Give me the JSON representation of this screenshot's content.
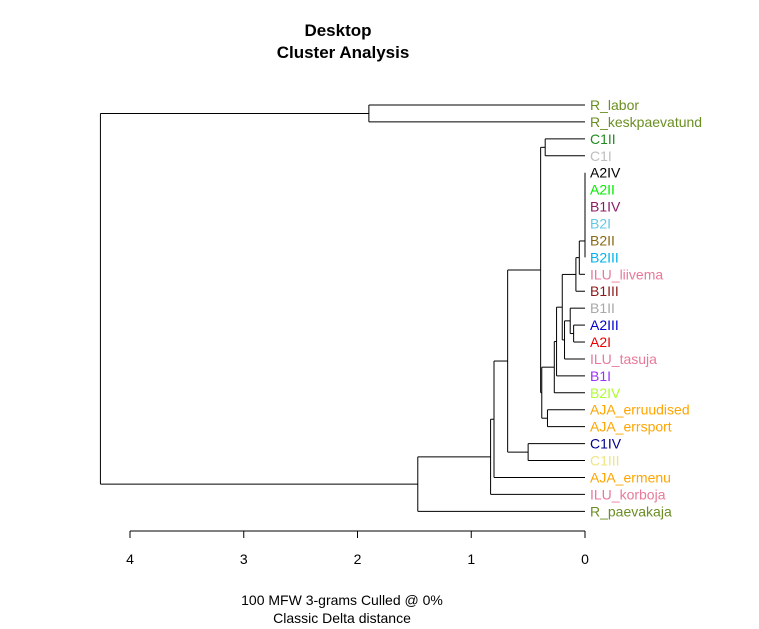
{
  "chart_data": {
    "type": "dendrogram",
    "title": [
      "Desktop",
      "Cluster Analysis"
    ],
    "xlabel": [
      "100 MFW 3-grams Culled @ 0%",
      "Classic Delta distance"
    ],
    "xticks": [
      4,
      3,
      2,
      1,
      0
    ],
    "xlim": [
      4.2,
      0
    ],
    "leaves": [
      {
        "label": "R_labor",
        "color": "#6B8E23"
      },
      {
        "label": "R_keskpaevatund",
        "color": "#6B8E23"
      },
      {
        "label": "C1II",
        "color": "#228B22"
      },
      {
        "label": "C1I",
        "color": "#BEBEBE"
      },
      {
        "label": "A2IV",
        "color": "#000000"
      },
      {
        "label": "A2II",
        "color": "#00EE00"
      },
      {
        "label": "B1IV",
        "color": "#8B1C62"
      },
      {
        "label": "B2I",
        "color": "#5FC8E8"
      },
      {
        "label": "B2II",
        "color": "#8B6914"
      },
      {
        "label": "B2III",
        "color": "#00B2EE"
      },
      {
        "label": "ILU_liivema",
        "color": "#E8799A"
      },
      {
        "label": "B1III",
        "color": "#8B1A1A"
      },
      {
        "label": "B1II",
        "color": "#A9A9A9"
      },
      {
        "label": "A2III",
        "color": "#0000CD"
      },
      {
        "label": "A2I",
        "color": "#EE0000"
      },
      {
        "label": "ILU_tasuja",
        "color": "#E8799A"
      },
      {
        "label": "B1I",
        "color": "#9B30FF"
      },
      {
        "label": "B2IV",
        "color": "#ADFF2F"
      },
      {
        "label": "AJA_erruudised",
        "color": "#FFA500"
      },
      {
        "label": "AJA_errsport",
        "color": "#FFA500"
      },
      {
        "label": "C1IV",
        "color": "#00008B"
      },
      {
        "label": "C1III",
        "color": "#EEE685"
      },
      {
        "label": "AJA_ermenu",
        "color": "#FFA500"
      },
      {
        "label": "ILU_korboja",
        "color": "#E8799A"
      },
      {
        "label": "R_paevakaja",
        "color": "#6B8E23"
      }
    ],
    "merges": [
      {
        "a": 0,
        "b": 1,
        "height": 1.9
      },
      {
        "a": 2,
        "b": 3,
        "height": 0.35
      },
      {
        "a": 4,
        "b": 5,
        "height": 0.0
      },
      {
        "a": "m2",
        "b": 6,
        "height": 0.0
      },
      {
        "a": "m3",
        "b": 7,
        "height": 0.0
      },
      {
        "a": "m4",
        "b": 8,
        "height": 0.0
      },
      {
        "a": "m5",
        "b": 9,
        "height": 0.0
      },
      {
        "a": "m6",
        "b": 10,
        "height": 0.05
      },
      {
        "a": "m7",
        "b": 11,
        "height": 0.08
      },
      {
        "a": 13,
        "b": 14,
        "height": 0.1
      },
      {
        "a": 12,
        "b": "m9",
        "height": 0.13
      },
      {
        "a": "m10",
        "b": 15,
        "height": 0.18
      },
      {
        "a": "m8",
        "b": "m11",
        "height": 0.2
      },
      {
        "a": "m12",
        "b": 16,
        "height": 0.25
      },
      {
        "a": "m13",
        "b": 17,
        "height": 0.27
      },
      {
        "a": 18,
        "b": 19,
        "height": 0.33
      },
      {
        "a": "m14",
        "b": "m15",
        "height": 0.38
      },
      {
        "a": "m1",
        "b": "m16",
        "height": 0.39
      },
      {
        "a": 20,
        "b": 21,
        "height": 0.5
      },
      {
        "a": "m17",
        "b": "m18",
        "height": 0.68
      },
      {
        "a": "m19",
        "b": 22,
        "height": 0.8
      },
      {
        "a": "m20",
        "b": 23,
        "height": 0.83
      },
      {
        "a": "m21",
        "b": 24,
        "height": 1.47
      },
      {
        "a": "m0",
        "b": "m22",
        "height": 4.26
      }
    ]
  }
}
